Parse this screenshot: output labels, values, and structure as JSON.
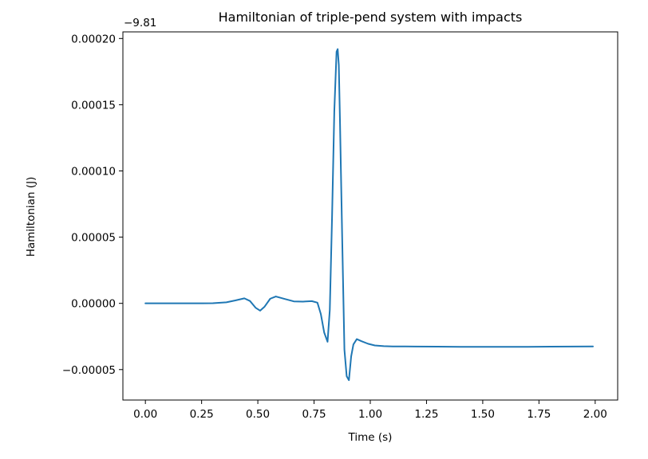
{
  "chart_data": {
    "type": "line",
    "title": "Hamiltonian of triple-pend system with impacts",
    "xlabel": "Time (s)",
    "ylabel": "Hamiltonian (J)",
    "y_offset_label": "−9.81",
    "xlim": [
      -0.1,
      2.1
    ],
    "ylim": [
      -7.3e-05,
      0.000205
    ],
    "xticks": [
      0.0,
      0.25,
      0.5,
      0.75,
      1.0,
      1.25,
      1.5,
      1.75,
      2.0
    ],
    "xtick_labels": [
      "0.00",
      "0.25",
      "0.50",
      "0.75",
      "1.00",
      "1.25",
      "1.50",
      "1.75",
      "2.00"
    ],
    "yticks": [
      -5e-05,
      0.0,
      5e-05,
      0.0001,
      0.00015,
      0.0002
    ],
    "ytick_labels": [
      "−0.00005",
      "0.00000",
      "0.00005",
      "0.00010",
      "0.00015",
      "0.00020"
    ],
    "grid": false,
    "line_color": "#1f77b4",
    "series": [
      {
        "x": [
          0.0,
          0.1,
          0.2,
          0.3,
          0.36,
          0.4,
          0.44,
          0.465,
          0.49,
          0.51,
          0.53,
          0.555,
          0.58,
          0.62,
          0.66,
          0.7,
          0.74,
          0.765,
          0.78,
          0.795,
          0.81,
          0.82,
          0.83,
          0.84,
          0.85,
          0.855,
          0.86,
          0.865,
          0.875,
          0.885,
          0.895,
          0.905,
          0.915,
          0.925,
          0.94,
          0.96,
          0.99,
          1.02,
          1.06,
          1.1,
          1.2,
          1.3,
          1.4,
          1.5,
          1.6,
          1.7,
          1.8,
          1.9,
          1.99
        ],
        "y": [
          0.0,
          0.0,
          0.0,
          1e-07,
          8e-07,
          2.2e-06,
          3.8e-06,
          1.8e-06,
          -3.3e-06,
          -5.5e-06,
          -2.5e-06,
          3.5e-06,
          5.2e-06,
          3.3e-06,
          1.5e-06,
          1.3e-06,
          1.7e-06,
          5e-07,
          -8e-06,
          -2.2e-05,
          -2.9e-05,
          -5e-06,
          6.5e-05,
          0.000145,
          0.00019,
          0.000192,
          0.00018,
          0.00014,
          5e-05,
          -3.5e-05,
          -5.5e-05,
          -5.8e-05,
          -4e-05,
          -3.1e-05,
          -2.7e-05,
          -2.85e-05,
          -3.05e-05,
          -3.18e-05,
          -3.23e-05,
          -3.25e-05,
          -3.26e-05,
          -3.27e-05,
          -3.28e-05,
          -3.28e-05,
          -3.28e-05,
          -3.28e-05,
          -3.27e-05,
          -3.26e-05,
          -3.25e-05
        ]
      }
    ]
  }
}
